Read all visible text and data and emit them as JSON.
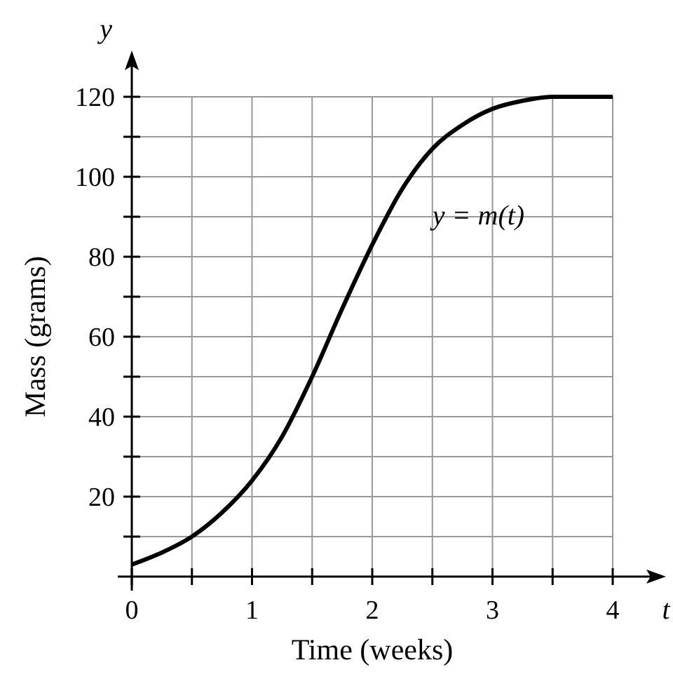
{
  "chart_data": {
    "type": "line",
    "xlabel": "Time (weeks)",
    "ylabel": "Mass (grams)",
    "x": [
      0,
      0.25,
      0.5,
      0.75,
      1,
      1.25,
      1.5,
      1.75,
      2,
      2.25,
      2.5,
      2.75,
      3,
      3.25,
      3.5,
      3.75,
      4
    ],
    "series": [
      {
        "name": "y = m(t)",
        "color": "#000000",
        "values": [
          3,
          6,
          10,
          16,
          24,
          35,
          50,
          67,
          83,
          97,
          107,
          113,
          117,
          119,
          120,
          120,
          120
        ]
      }
    ],
    "xlim": [
      0,
      4
    ],
    "ylim": [
      0,
      120
    ],
    "xticks": [
      0,
      {
        "value": 0.5,
        "label": null
      },
      1,
      {
        "value": 1.5,
        "label": null
      },
      2,
      {
        "value": 2.5,
        "label": null
      },
      3,
      {
        "value": 3.5,
        "label": null
      },
      4
    ],
    "yticks": [
      {
        "value": 10,
        "label": null
      },
      20,
      {
        "value": 30,
        "label": null
      },
      40,
      {
        "value": 50,
        "label": null
      },
      60,
      {
        "value": 70,
        "label": null
      },
      80,
      {
        "value": 90,
        "label": null
      },
      100,
      {
        "value": 110,
        "label": null
      },
      120
    ],
    "grid": true,
    "line_style": "solid",
    "marker": "none",
    "annotations": [
      "y",
      "t"
    ]
  }
}
